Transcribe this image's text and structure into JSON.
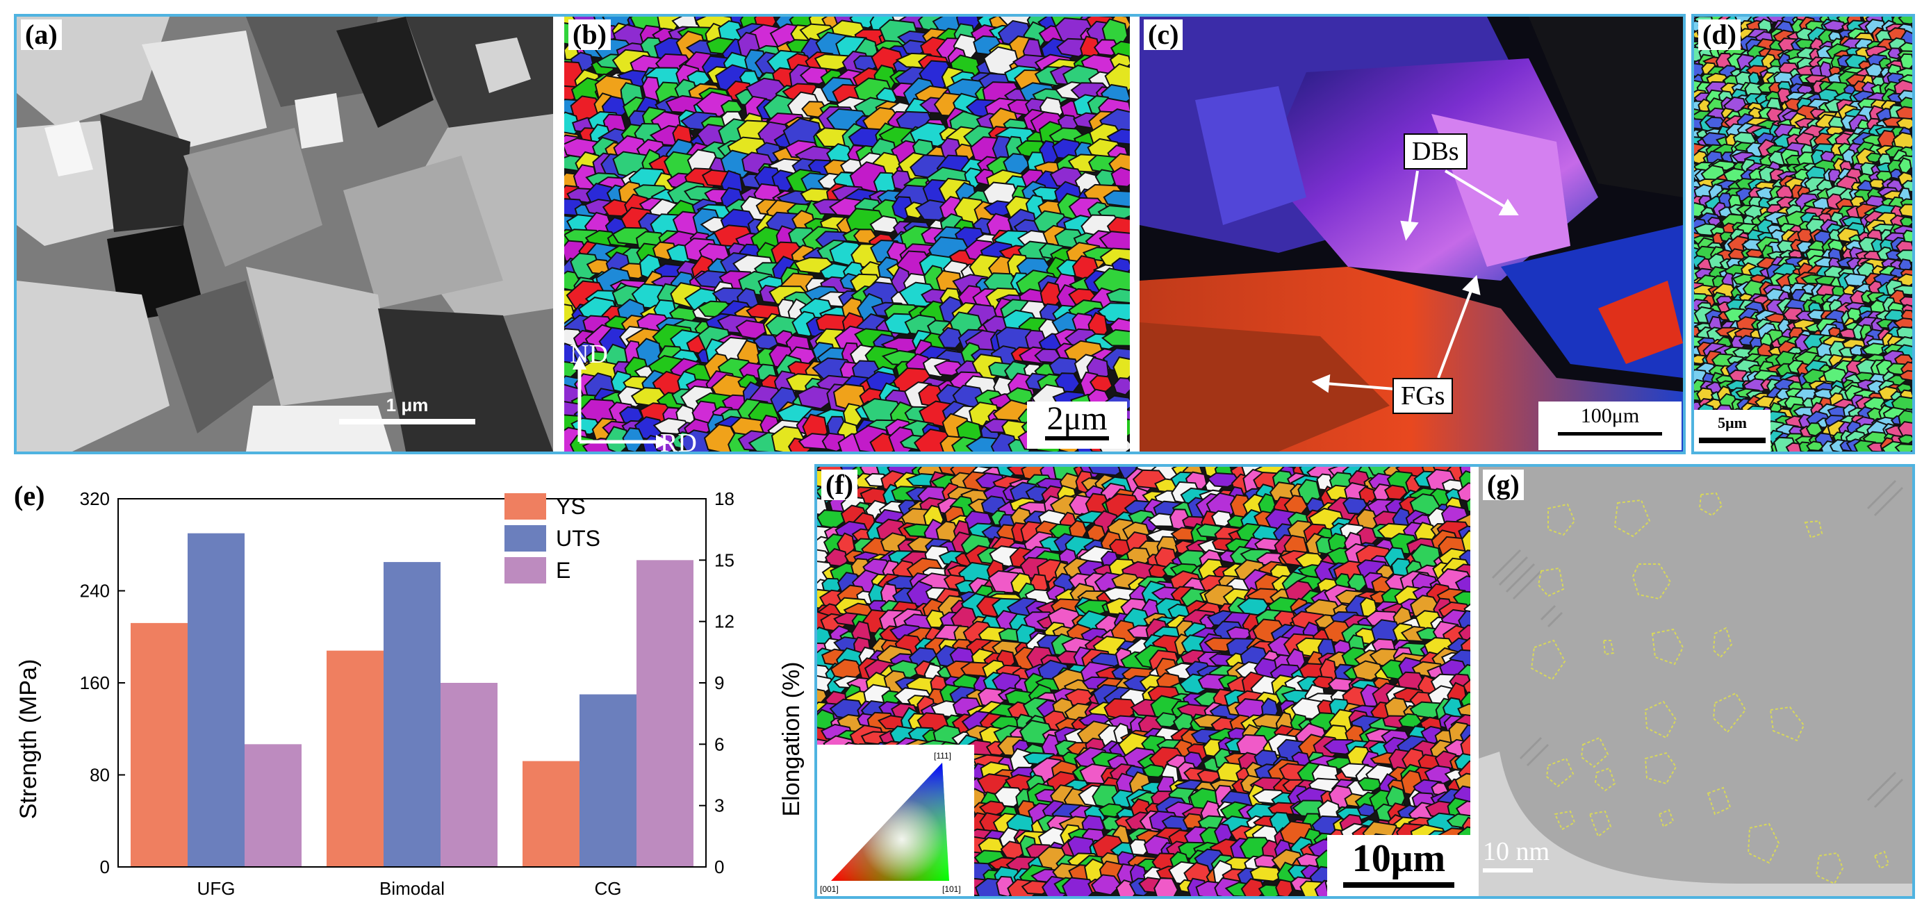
{
  "panels": {
    "a": {
      "label": "(a)",
      "scale": "1 μm"
    },
    "b": {
      "label": "(b)",
      "scale": "2μm",
      "axis_nd": "ND",
      "axis_rd": "RD"
    },
    "c": {
      "label": "(c)",
      "scale": "100μm",
      "callout_dbs": "DBs",
      "callout_fgs": "FGs"
    },
    "d": {
      "label": "(d)",
      "scale": "5μm"
    },
    "e": {
      "label": "(e)"
    },
    "f": {
      "label": "(f)",
      "scale": "10μm",
      "ipf_001": "[001]",
      "ipf_101": "[101]",
      "ipf_111": "[111]"
    },
    "g": {
      "label": "(g)",
      "scale": "10 nm"
    }
  },
  "chart_data": {
    "type": "bar",
    "categories": [
      "UFG",
      "Bimodal",
      "CG"
    ],
    "series": [
      {
        "name": "YS",
        "axis": "left",
        "values": [
          212,
          188,
          92
        ],
        "color": "#ef7f60"
      },
      {
        "name": "UTS",
        "axis": "left",
        "values": [
          290,
          265,
          150
        ],
        "color": "#6b7fbd"
      },
      {
        "name": "E",
        "axis": "right",
        "values": [
          6.0,
          9.0,
          15.0
        ],
        "color": "#bd8bbf"
      }
    ],
    "ylabel": "Strength (MPa)",
    "ylabel_right": "Elongation (%)",
    "ylim": [
      0,
      320
    ],
    "ylim_right": [
      0,
      18
    ],
    "yticks": [
      "0",
      "80",
      "160",
      "240",
      "320"
    ],
    "yticks_right": [
      "0",
      "3",
      "6",
      "9",
      "12",
      "15",
      "18"
    ],
    "legend": "top-center"
  }
}
